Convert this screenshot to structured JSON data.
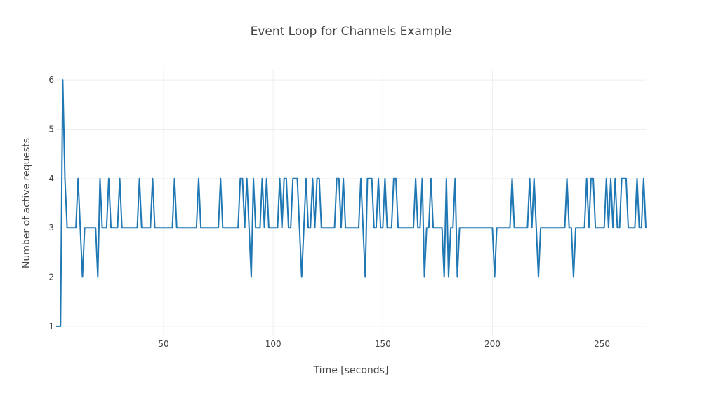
{
  "chart_data": {
    "type": "line",
    "title": "Event Loop for Channels Example",
    "xlabel": "Time [seconds]",
    "ylabel": "Number of active requests",
    "xlim": [
      1,
      270
    ],
    "ylim": [
      0.8,
      6.2
    ],
    "x_ticks": [
      50,
      100,
      150,
      200,
      250
    ],
    "y_ticks": [
      1,
      2,
      3,
      4,
      5,
      6
    ],
    "grid": true,
    "legend": "none",
    "colors": {
      "series": "#1f77b4",
      "grid": "#eeeeee",
      "text": "#444444"
    },
    "series": [
      {
        "values": [
          [
            1,
            1
          ],
          [
            2,
            1
          ],
          [
            3,
            1
          ],
          [
            4,
            6
          ],
          [
            5,
            4
          ],
          [
            6,
            3
          ],
          [
            7,
            3
          ],
          [
            8,
            3
          ],
          [
            9,
            3
          ],
          [
            10,
            3
          ],
          [
            11,
            4
          ],
          [
            12,
            3
          ],
          [
            13,
            2
          ],
          [
            14,
            3
          ],
          [
            15,
            3
          ],
          [
            16,
            3
          ],
          [
            17,
            3
          ],
          [
            18,
            3
          ],
          [
            19,
            3
          ],
          [
            20,
            2
          ],
          [
            21,
            4
          ],
          [
            22,
            3
          ],
          [
            23,
            3
          ],
          [
            24,
            3
          ],
          [
            25,
            4
          ],
          [
            26,
            3
          ],
          [
            27,
            3
          ],
          [
            28,
            3
          ],
          [
            29,
            3
          ],
          [
            30,
            4
          ],
          [
            31,
            3
          ],
          [
            32,
            3
          ],
          [
            33,
            3
          ],
          [
            34,
            3
          ],
          [
            35,
            3
          ],
          [
            36,
            3
          ],
          [
            37,
            3
          ],
          [
            38,
            3
          ],
          [
            39,
            4
          ],
          [
            40,
            3
          ],
          [
            41,
            3
          ],
          [
            42,
            3
          ],
          [
            43,
            3
          ],
          [
            44,
            3
          ],
          [
            45,
            4
          ],
          [
            46,
            3
          ],
          [
            47,
            3
          ],
          [
            48,
            3
          ],
          [
            49,
            3
          ],
          [
            50,
            3
          ],
          [
            51,
            3
          ],
          [
            52,
            3
          ],
          [
            53,
            3
          ],
          [
            54,
            3
          ],
          [
            55,
            4
          ],
          [
            56,
            3
          ],
          [
            57,
            3
          ],
          [
            58,
            3
          ],
          [
            59,
            3
          ],
          [
            60,
            3
          ],
          [
            61,
            3
          ],
          [
            62,
            3
          ],
          [
            63,
            3
          ],
          [
            64,
            3
          ],
          [
            65,
            3
          ],
          [
            66,
            4
          ],
          [
            67,
            3
          ],
          [
            68,
            3
          ],
          [
            69,
            3
          ],
          [
            70,
            3
          ],
          [
            71,
            3
          ],
          [
            72,
            3
          ],
          [
            73,
            3
          ],
          [
            74,
            3
          ],
          [
            75,
            3
          ],
          [
            76,
            4
          ],
          [
            77,
            3
          ],
          [
            78,
            3
          ],
          [
            79,
            3
          ],
          [
            80,
            3
          ],
          [
            81,
            3
          ],
          [
            82,
            3
          ],
          [
            83,
            3
          ],
          [
            84,
            3
          ],
          [
            85,
            4
          ],
          [
            86,
            4
          ],
          [
            87,
            3
          ],
          [
            88,
            4
          ],
          [
            89,
            3
          ],
          [
            90,
            2
          ],
          [
            91,
            4
          ],
          [
            92,
            3
          ],
          [
            93,
            3
          ],
          [
            94,
            3
          ],
          [
            95,
            4
          ],
          [
            96,
            3
          ],
          [
            97,
            4
          ],
          [
            98,
            3
          ],
          [
            99,
            3
          ],
          [
            100,
            3
          ],
          [
            101,
            3
          ],
          [
            102,
            3
          ],
          [
            103,
            4
          ],
          [
            104,
            3
          ],
          [
            105,
            4
          ],
          [
            106,
            4
          ],
          [
            107,
            3
          ],
          [
            108,
            3
          ],
          [
            109,
            4
          ],
          [
            110,
            4
          ],
          [
            111,
            4
          ],
          [
            112,
            3
          ],
          [
            113,
            2
          ],
          [
            114,
            3
          ],
          [
            115,
            4
          ],
          [
            116,
            3
          ],
          [
            117,
            3
          ],
          [
            118,
            4
          ],
          [
            119,
            3
          ],
          [
            120,
            4
          ],
          [
            121,
            4
          ],
          [
            122,
            3
          ],
          [
            123,
            3
          ],
          [
            124,
            3
          ],
          [
            125,
            3
          ],
          [
            126,
            3
          ],
          [
            127,
            3
          ],
          [
            128,
            3
          ],
          [
            129,
            4
          ],
          [
            130,
            4
          ],
          [
            131,
            3
          ],
          [
            132,
            4
          ],
          [
            133,
            3
          ],
          [
            134,
            3
          ],
          [
            135,
            3
          ],
          [
            136,
            3
          ],
          [
            137,
            3
          ],
          [
            138,
            3
          ],
          [
            139,
            3
          ],
          [
            140,
            4
          ],
          [
            141,
            3
          ],
          [
            142,
            2
          ],
          [
            143,
            4
          ],
          [
            144,
            4
          ],
          [
            145,
            4
          ],
          [
            146,
            3
          ],
          [
            147,
            3
          ],
          [
            148,
            4
          ],
          [
            149,
            3
          ],
          [
            150,
            3
          ],
          [
            151,
            4
          ],
          [
            152,
            3
          ],
          [
            153,
            3
          ],
          [
            154,
            3
          ],
          [
            155,
            4
          ],
          [
            156,
            4
          ],
          [
            157,
            3
          ],
          [
            158,
            3
          ],
          [
            159,
            3
          ],
          [
            160,
            3
          ],
          [
            161,
            3
          ],
          [
            162,
            3
          ],
          [
            163,
            3
          ],
          [
            164,
            3
          ],
          [
            165,
            4
          ],
          [
            166,
            3
          ],
          [
            167,
            3
          ],
          [
            168,
            4
          ],
          [
            169,
            2
          ],
          [
            170,
            3
          ],
          [
            171,
            3
          ],
          [
            172,
            4
          ],
          [
            173,
            3
          ],
          [
            174,
            3
          ],
          [
            175,
            3
          ],
          [
            176,
            3
          ],
          [
            177,
            3
          ],
          [
            178,
            2
          ],
          [
            179,
            4
          ],
          [
            180,
            2
          ],
          [
            181,
            3
          ],
          [
            182,
            3
          ],
          [
            183,
            4
          ],
          [
            184,
            2
          ],
          [
            185,
            3
          ],
          [
            186,
            3
          ],
          [
            187,
            3
          ],
          [
            188,
            3
          ],
          [
            189,
            3
          ],
          [
            190,
            3
          ],
          [
            191,
            3
          ],
          [
            192,
            3
          ],
          [
            193,
            3
          ],
          [
            194,
            3
          ],
          [
            195,
            3
          ],
          [
            196,
            3
          ],
          [
            197,
            3
          ],
          [
            198,
            3
          ],
          [
            199,
            3
          ],
          [
            200,
            3
          ],
          [
            201,
            2
          ],
          [
            202,
            3
          ],
          [
            203,
            3
          ],
          [
            204,
            3
          ],
          [
            205,
            3
          ],
          [
            206,
            3
          ],
          [
            207,
            3
          ],
          [
            208,
            3
          ],
          [
            209,
            4
          ],
          [
            210,
            3
          ],
          [
            211,
            3
          ],
          [
            212,
            3
          ],
          [
            213,
            3
          ],
          [
            214,
            3
          ],
          [
            215,
            3
          ],
          [
            216,
            3
          ],
          [
            217,
            4
          ],
          [
            218,
            3
          ],
          [
            219,
            4
          ],
          [
            220,
            3
          ],
          [
            221,
            2
          ],
          [
            222,
            3
          ],
          [
            223,
            3
          ],
          [
            224,
            3
          ],
          [
            225,
            3
          ],
          [
            226,
            3
          ],
          [
            227,
            3
          ],
          [
            228,
            3
          ],
          [
            229,
            3
          ],
          [
            230,
            3
          ],
          [
            231,
            3
          ],
          [
            232,
            3
          ],
          [
            233,
            3
          ],
          [
            234,
            4
          ],
          [
            235,
            3
          ],
          [
            236,
            3
          ],
          [
            237,
            2
          ],
          [
            238,
            3
          ],
          [
            239,
            3
          ],
          [
            240,
            3
          ],
          [
            241,
            3
          ],
          [
            242,
            3
          ],
          [
            243,
            4
          ],
          [
            244,
            3
          ],
          [
            245,
            4
          ],
          [
            246,
            4
          ],
          [
            247,
            3
          ],
          [
            248,
            3
          ],
          [
            249,
            3
          ],
          [
            250,
            3
          ],
          [
            251,
            3
          ],
          [
            252,
            4
          ],
          [
            253,
            3
          ],
          [
            254,
            4
          ],
          [
            255,
            3
          ],
          [
            256,
            4
          ],
          [
            257,
            3
          ],
          [
            258,
            3
          ],
          [
            259,
            4
          ],
          [
            260,
            4
          ],
          [
            261,
            4
          ],
          [
            262,
            3
          ],
          [
            263,
            3
          ],
          [
            264,
            3
          ],
          [
            265,
            3
          ],
          [
            266,
            4
          ],
          [
            267,
            3
          ],
          [
            268,
            3
          ],
          [
            269,
            4
          ],
          [
            270,
            3
          ]
        ]
      }
    ]
  }
}
